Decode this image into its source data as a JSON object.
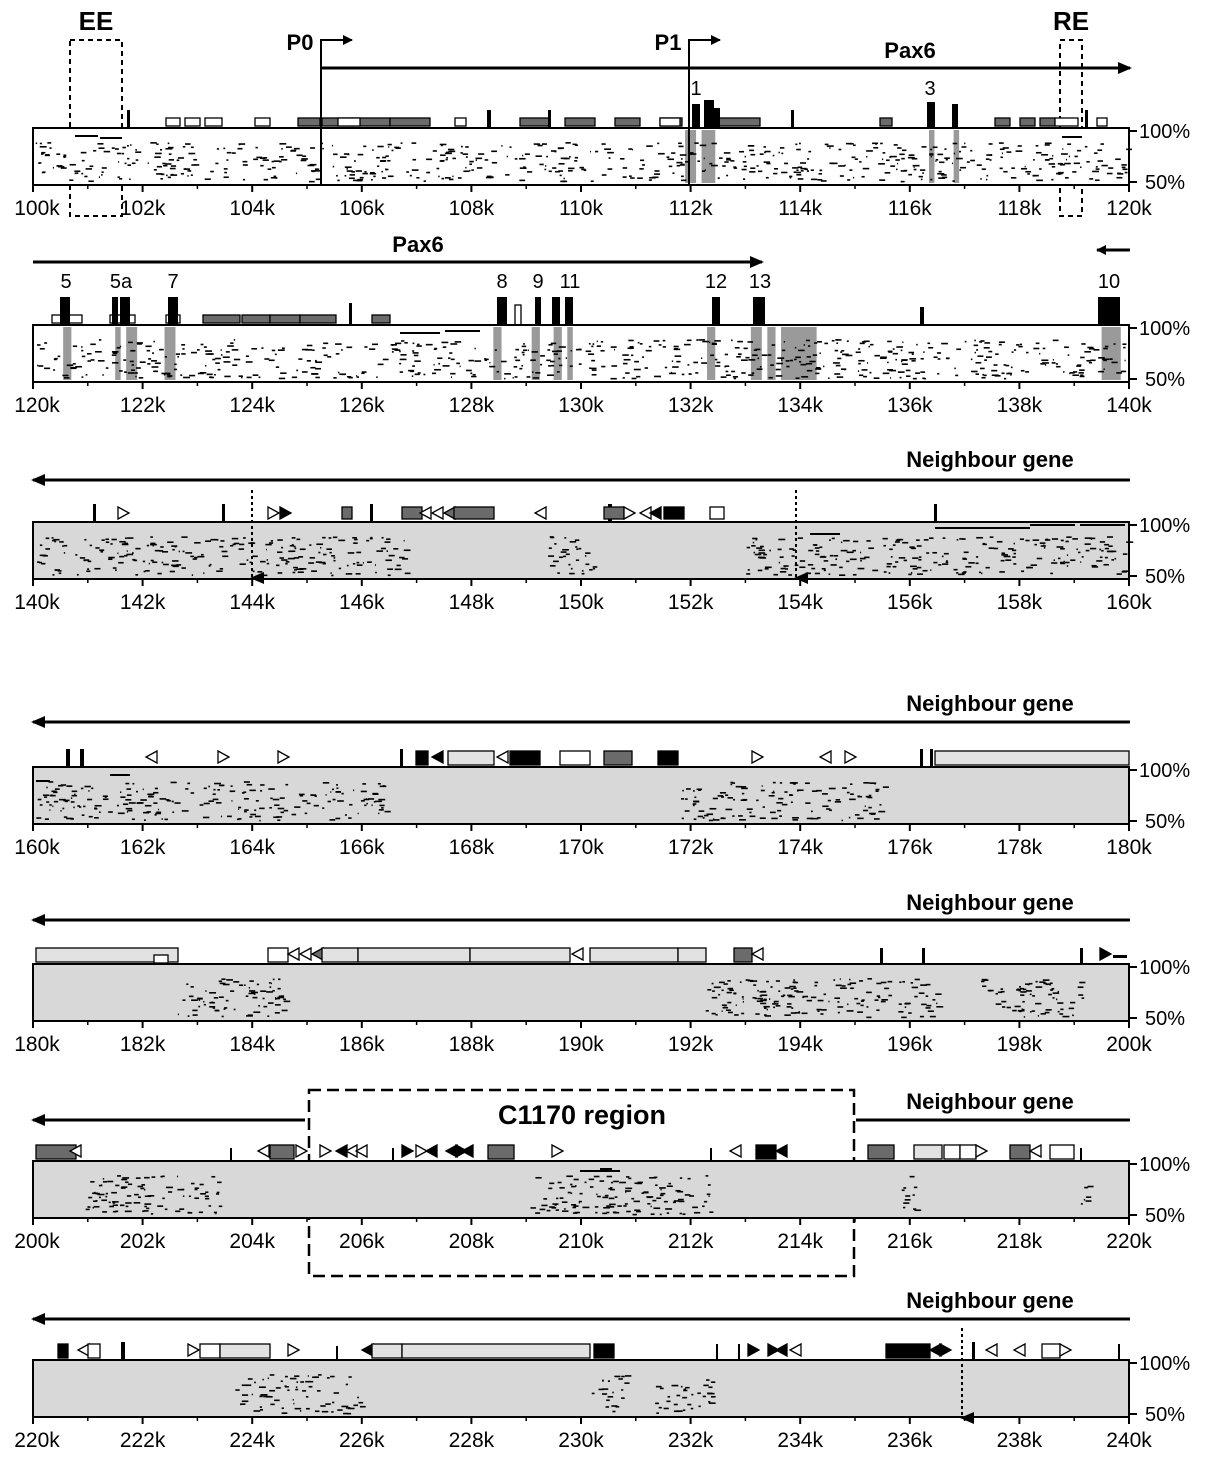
{
  "labels": {
    "ee": "EE",
    "re": "RE",
    "p0": "P0",
    "p1": "P1",
    "pax6": "Pax6",
    "neighbour_gene": "Neighbour gene",
    "c1170": "C1170 region",
    "pct100": "100%",
    "pct50": "50%"
  },
  "colors": {
    "exon": "#000000",
    "conserved_bar": "#9a9a9a",
    "repeat_dark": "#6b6b6b",
    "repeat_light": "#e2e2e2",
    "panel_bg_neighbour": "#d8d8d8"
  },
  "panels": [
    {
      "id": "p1",
      "start_kb": 100,
      "end_kb": 120,
      "ticks": [
        "100k",
        "102k",
        "104k",
        "106k",
        "108k",
        "110k",
        "112k",
        "114k",
        "116k",
        "118k",
        "120k"
      ],
      "exons": [
        {
          "label": "1",
          "kb": 112.15
        },
        {
          "label": "3",
          "kb": 116.45
        }
      ],
      "conserved_kb": [
        [
          111.9,
          112.1
        ],
        [
          112.2,
          112.45
        ],
        [
          116.35,
          116.45
        ],
        [
          116.8,
          116.9
        ]
      ]
    },
    {
      "id": "p2",
      "start_kb": 120,
      "end_kb": 140,
      "ticks": [
        "120k",
        "122k",
        "124k",
        "126k",
        "128k",
        "130k",
        "132k",
        "134k",
        "136k",
        "138k",
        "140k"
      ],
      "exons": [
        {
          "label": "5",
          "kb": 120.6
        },
        {
          "label": "5a",
          "kb": 121.6
        },
        {
          "label": "7",
          "kb": 122.5
        },
        {
          "label": "8",
          "kb": 128.5
        },
        {
          "label": "9",
          "kb": 129.2
        },
        {
          "label": "11",
          "kb": 129.8
        },
        {
          "label": "12",
          "kb": 132.4
        },
        {
          "label": "13",
          "kb": 133.2
        },
        {
          "label": "10",
          "kb": 139.7
        }
      ],
      "conserved_kb": [
        [
          120.55,
          120.7
        ],
        [
          121.5,
          121.6
        ],
        [
          121.7,
          121.9
        ],
        [
          122.4,
          122.6
        ],
        [
          128.4,
          128.55
        ],
        [
          129.1,
          129.25
        ],
        [
          129.5,
          129.65
        ],
        [
          129.75,
          129.85
        ],
        [
          132.3,
          132.45
        ],
        [
          133.1,
          133.3
        ],
        [
          133.4,
          133.55
        ],
        [
          133.65,
          134.3
        ],
        [
          139.5,
          139.85
        ]
      ]
    },
    {
      "id": "p3",
      "start_kb": 140,
      "end_kb": 160,
      "ticks": [
        "140k",
        "142k",
        "144k",
        "146k",
        "148k",
        "150k",
        "152k",
        "154k",
        "156k",
        "158k",
        "160k"
      ]
    },
    {
      "id": "p4",
      "start_kb": 160,
      "end_kb": 180,
      "ticks": [
        "160k",
        "162k",
        "164k",
        "166k",
        "168k",
        "170k",
        "172k",
        "174k",
        "176k",
        "178k",
        "180k"
      ]
    },
    {
      "id": "p5",
      "start_kb": 180,
      "end_kb": 200,
      "ticks": [
        "180k",
        "182k",
        "184k",
        "186k",
        "188k",
        "190k",
        "192k",
        "194k",
        "196k",
        "198k",
        "200k"
      ]
    },
    {
      "id": "p6",
      "start_kb": 200,
      "end_kb": 220,
      "ticks": [
        "200k",
        "202k",
        "204k",
        "206k",
        "208k",
        "210k",
        "212k",
        "214k",
        "216k",
        "218k",
        "220k"
      ]
    },
    {
      "id": "p7",
      "start_kb": 220,
      "end_kb": 240,
      "ticks": [
        "220k",
        "222k",
        "224k",
        "226k",
        "228k",
        "230k",
        "232k",
        "234k",
        "236k",
        "238k",
        "240k"
      ]
    }
  ]
}
